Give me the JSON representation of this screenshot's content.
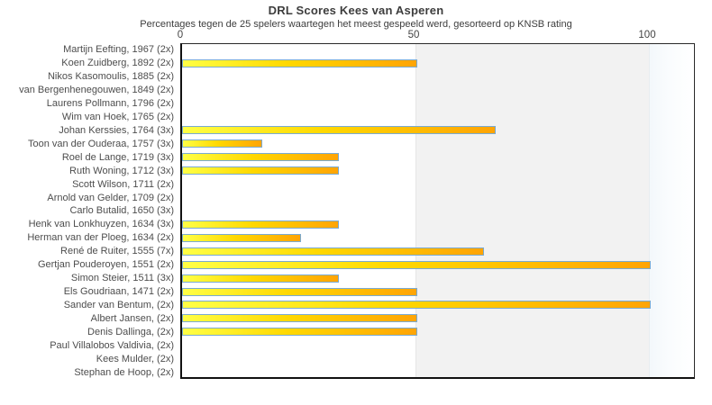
{
  "chart_data": {
    "type": "bar",
    "orientation": "horizontal",
    "title": "DRL Scores Kees van Asperen",
    "subtitle": "Percentages tegen de 25 spelers waartegen het meest gespeeld werd, gesorteerd op KNSB rating",
    "xlabel": "",
    "ylabel": "",
    "xlim": [
      0,
      110
    ],
    "x_ticks": [
      0,
      50,
      100
    ],
    "x_axis_position": "top",
    "grid": false,
    "legend_position": "none",
    "shaded_band": {
      "from": 50,
      "to": 100,
      "color": "#f2f2f2"
    },
    "categories": [
      "Martijn Eefting, 1967 (2x)",
      "Koen Zuidberg, 1892 (2x)",
      "Nikos Kasomoulis, 1885 (2x)",
      "van Bergenhenegouwen, 1849 (2x)",
      "Laurens Pollmann, 1796 (2x)",
      "Wim van Hoek, 1765 (2x)",
      "Johan Kerssies, 1764 (3x)",
      "Toon van der Ouderaa, 1757 (3x)",
      "Roel de Lange, 1719 (3x)",
      "Ruth Woning, 1712 (3x)",
      "Scott Wilson, 1711 (2x)",
      "Arnold van Gelder, 1709 (2x)",
      "Carlo Butalid, 1650 (3x)",
      "Henk van Lonkhuyzen, 1634 (3x)",
      "Herman van der Ploeg, 1634 (2x)",
      "René de Ruiter, 1555 (7x)",
      "Gertjan Pouderoyen, 1551 (2x)",
      "Simon Steier, 1511 (3x)",
      "Els Goudriaan, 1471 (2x)",
      "Sander van Bentum,  (2x)",
      "Albert Jansen,  (2x)",
      "Denis Dallinga,  (2x)",
      "Paul Villalobos Valdivia,  (2x)",
      "Kees Mulder,  (2x)",
      "Stephan de Hoop,  (2x)"
    ],
    "values": [
      0,
      50,
      0,
      0,
      0,
      0,
      66.7,
      16.7,
      33.3,
      33.3,
      0,
      0,
      0,
      33.3,
      25,
      64.3,
      100,
      33.3,
      50,
      100,
      50,
      50,
      0,
      0,
      0
    ],
    "colors": {
      "bar_gradient_start": "#ffff45",
      "bar_gradient_end": "#ffa405",
      "bar_border": "#79aad2",
      "band_gray": "#f2f2f2",
      "plot_border": "#1a1a1a",
      "text": "#444444",
      "title_text": "#3d3d3d"
    }
  }
}
